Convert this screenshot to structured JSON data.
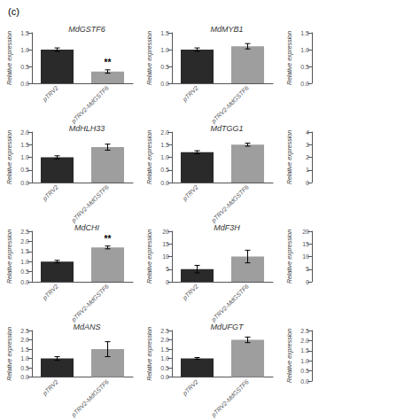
{
  "title": "(c)",
  "chart_data": [
    {
      "type": "bar",
      "title": "MdGSTF6",
      "categories": [
        "pTRV2",
        "pTRV2-MdGSTF6"
      ],
      "values": [
        1.0,
        0.35
      ],
      "errors": [
        0.05,
        0.05
      ],
      "colors": [
        "#2a2a2a",
        "#9e9e9e"
      ],
      "ylabel": "Relative expression",
      "ylim": [
        0,
        1.5
      ],
      "yticks": [
        {
          "value": 0,
          "label": "0.0"
        },
        0.5,
        {
          "value": 1,
          "label": "1.0"
        },
        1.5
      ],
      "grid": false,
      "annotations": [
        {
          "text": "**",
          "category": "pTRV2-MdGSTF6"
        }
      ]
    },
    {
      "type": "bar",
      "title": "MdMYB1",
      "categories": [
        "pTRV2",
        "pTRV2-MdGSTF6"
      ],
      "values": [
        1.0,
        1.1
      ],
      "errors": [
        0.05,
        0.08
      ],
      "colors": [
        "#2a2a2a",
        "#9e9e9e"
      ],
      "ylabel": "Relative expression",
      "ylim": [
        0,
        1.5
      ],
      "yticks": [
        {
          "value": 0,
          "label": "0.0"
        },
        0.5,
        {
          "value": 1,
          "label": "1.0"
        },
        1.5
      ],
      "grid": false
    },
    {
      "type": "bar",
      "ylabel": "Relative expression",
      "ylim": [
        0,
        1.5
      ],
      "yticks": [
        {
          "value": 0,
          "label": "0.0"
        },
        0.5,
        {
          "value": 1,
          "label": "1.0"
        },
        1.5
      ],
      "grid": false,
      "tick_labels": "y"
    },
    {
      "type": "bar",
      "title": "MdHLH33",
      "categories": [
        "pTRV2",
        "pTRV2-MdGSTF6"
      ],
      "values": [
        1.0,
        1.4
      ],
      "errors": [
        0.06,
        0.12
      ],
      "colors": [
        "#2a2a2a",
        "#9e9e9e"
      ],
      "ylabel": "Relative expression",
      "ylim": [
        0,
        2.0
      ],
      "yticks": [
        {
          "value": 0,
          "label": "0.0"
        },
        0.5,
        {
          "value": 1,
          "label": "1.0"
        },
        1.5,
        {
          "value": 2,
          "label": "2.0"
        }
      ],
      "grid": false
    },
    {
      "type": "bar",
      "title": "MdTGG1",
      "categories": [
        "pTRV2",
        "pTRV2-MdGSTF6"
      ],
      "values": [
        1.2,
        1.5
      ],
      "errors": [
        0.06,
        0.06
      ],
      "colors": [
        "#2a2a2a",
        "#9e9e9e"
      ],
      "ylabel": "Relative expression",
      "ylim": [
        0,
        2.0
      ],
      "yticks": [
        {
          "value": 0,
          "label": "0.0"
        },
        0.5,
        {
          "value": 1,
          "label": "1.0"
        },
        1.5,
        {
          "value": 2,
          "label": "2.0"
        }
      ],
      "grid": false
    },
    {
      "type": "bar",
      "ylabel": "Relative expression",
      "ylim": [
        0,
        4
      ],
      "yticks": [
        0,
        1,
        2,
        3,
        4
      ],
      "grid": false,
      "tick_labels": "y"
    },
    {
      "type": "bar",
      "title": "MdCHI",
      "categories": [
        "pTRV2",
        "pTRV2-MdGSTF6"
      ],
      "values": [
        1.0,
        1.7
      ],
      "errors": [
        0.06,
        0.07
      ],
      "colors": [
        "#2a2a2a",
        "#9e9e9e"
      ],
      "ylabel": "Relative expression",
      "ylim": [
        0,
        2.5
      ],
      "yticks": [
        {
          "value": 0,
          "label": "0.0"
        },
        0.5,
        {
          "value": 1,
          "label": "1.0"
        },
        1.5,
        {
          "value": 2,
          "label": "2.0"
        },
        2.5
      ],
      "grid": false,
      "annotations": [
        {
          "text": "**",
          "category": "pTRV2-MdGSTF6"
        }
      ]
    },
    {
      "type": "bar",
      "title": "MdF3H",
      "categories": [
        "pTRV2",
        "pTRV2-MdGSTF6"
      ],
      "values": [
        5.0,
        10.0
      ],
      "errors": [
        1.5,
        2.5
      ],
      "colors": [
        "#2a2a2a",
        "#9e9e9e"
      ],
      "ylabel": "Relative expression",
      "ylim": [
        0,
        20
      ],
      "yticks": [
        0,
        5,
        10,
        15,
        20
      ],
      "grid": false
    },
    {
      "type": "bar",
      "ylabel": "Relative expression",
      "ylim": [
        0,
        20
      ],
      "yticks": [
        0,
        5,
        10,
        15,
        20
      ],
      "grid": false,
      "tick_labels": "y"
    },
    {
      "type": "bar",
      "title": "MdANS",
      "categories": [
        "pTRV2",
        "pTRV2-MdGSTF6"
      ],
      "values": [
        1.0,
        1.5
      ],
      "errors": [
        0.1,
        0.4
      ],
      "colors": [
        "#2a2a2a",
        "#9e9e9e"
      ],
      "ylabel": "Relative expression",
      "ylim": [
        0,
        2.5
      ],
      "yticks": [
        {
          "value": 0,
          "label": "0.0"
        },
        0.5,
        {
          "value": 1,
          "label": "1.0"
        },
        1.5,
        {
          "value": 2,
          "label": "2.0"
        },
        2.5
      ],
      "grid": false
    },
    {
      "type": "bar",
      "title": "MdUFGT",
      "categories": [
        "pTRV2",
        "pTRV2-MdGSTF6"
      ],
      "values": [
        1.0,
        2.0
      ],
      "errors": [
        0.05,
        0.15
      ],
      "colors": [
        "#2a2a2a",
        "#9e9e9e"
      ],
      "ylabel": "Relative expression",
      "ylim": [
        0,
        2.5
      ],
      "yticks": [
        {
          "value": 0,
          "label": "0.0"
        },
        0.5,
        {
          "value": 1,
          "label": "1.0"
        },
        1.5,
        {
          "value": 2,
          "label": "2.0"
        },
        2.5
      ],
      "grid": false
    },
    {
      "type": "bar",
      "ylabel": "Relative expression",
      "ylim": [
        0,
        2.5
      ],
      "yticks": [
        {
          "value": 0,
          "label": "0.0"
        },
        0.5,
        {
          "value": 1,
          "label": "1.0"
        },
        1.5,
        {
          "value": 2,
          "label": "2.0"
        },
        2.5
      ],
      "grid": false,
      "tick_labels": "y"
    }
  ]
}
